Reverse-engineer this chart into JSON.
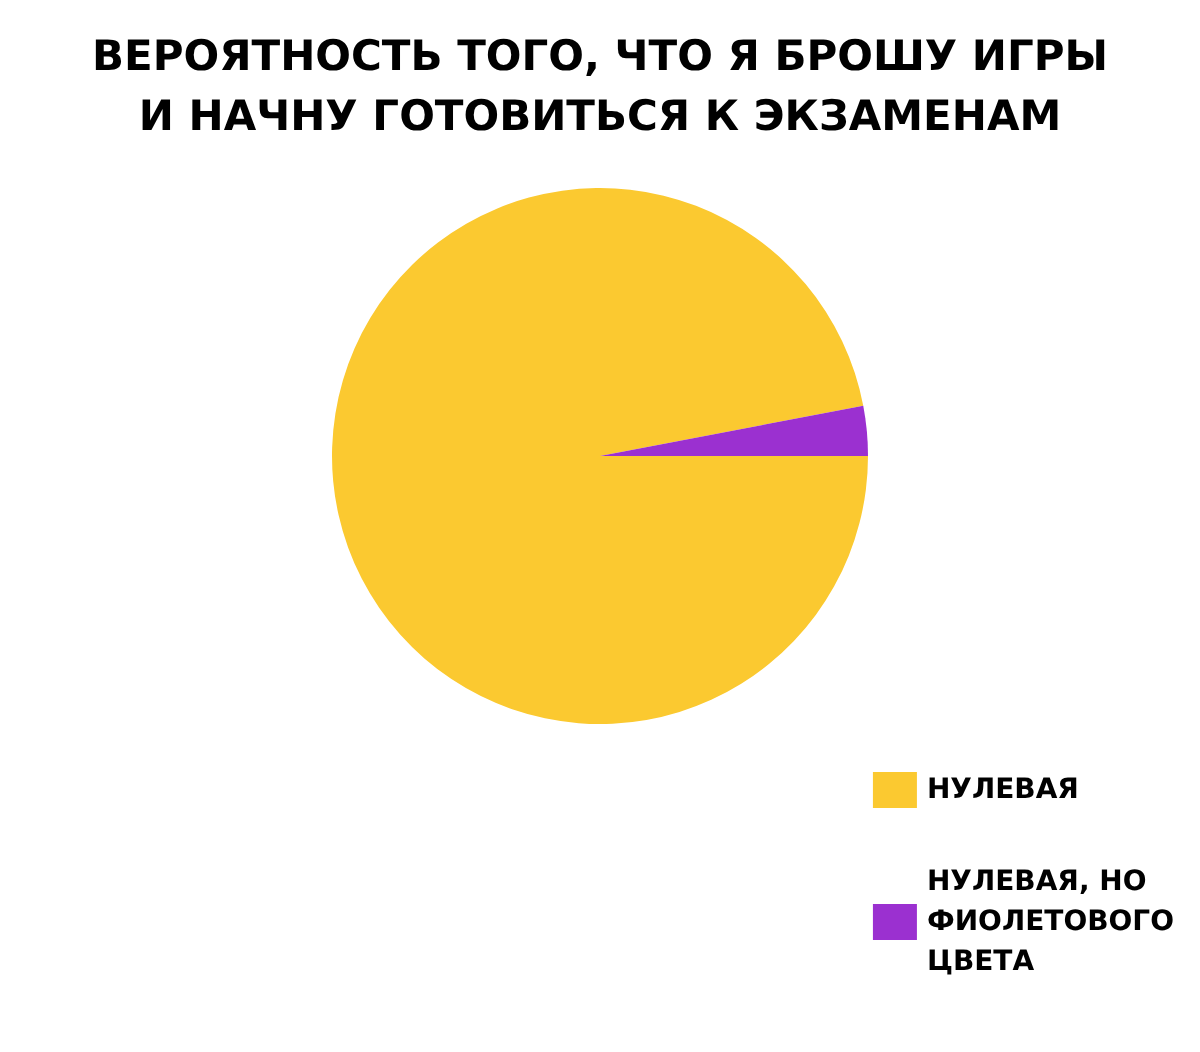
{
  "chart_data": {
    "type": "pie",
    "title": "ВЕРОЯТНОСТЬ ТОГО, ЧТО Я БРОШУ ИГРЫ\nИ НАЧНУ ГОТОВИТЬСЯ К ЭКЗАМЕНАМ",
    "categories": [
      "НУЛЕВАЯ",
      "НУЛЕВАЯ, НО ФИОЛЕТОВОГО ЦВЕТА"
    ],
    "values": [
      97,
      3
    ],
    "colors": [
      "#fbc930",
      "#9b30d0"
    ],
    "legend": "bottom right"
  }
}
